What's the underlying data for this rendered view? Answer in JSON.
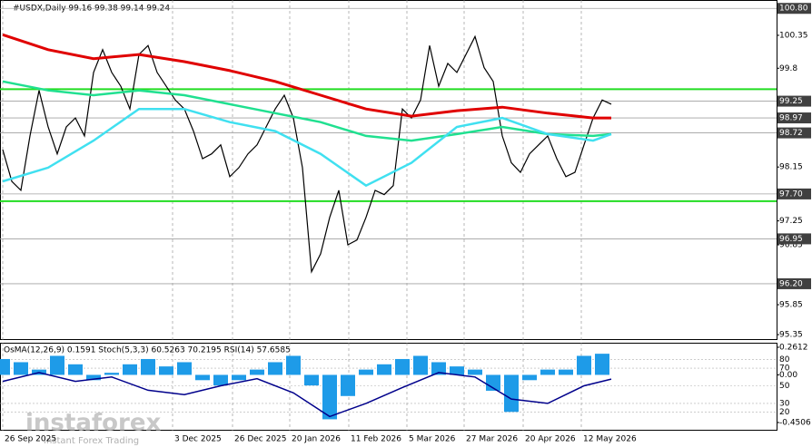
{
  "chart_data": [
    {
      "type": "line",
      "title": "#USDX,Daily  99.16 99.38 99.14 99.24",
      "xlim": [
        -0.3,
        85.2
      ],
      "ylim": [
        95.26,
        100.94
      ],
      "yticks": [
        100.35,
        99.8,
        98.15,
        97.25,
        96.85,
        95.85,
        95.35
      ],
      "xticks": [
        {
          "value": 0,
          "label": "26 Sep 2025"
        },
        {
          "value": 18.7,
          "label": "3 Dec 2025"
        },
        {
          "value": 25.3,
          "label": "26 Dec 2025"
        },
        {
          "value": 31.6,
          "label": "20 Jan 2026"
        },
        {
          "value": 38.1,
          "label": "11 Feb 2026"
        },
        {
          "value": 44.5,
          "label": "5 Mar 2026"
        },
        {
          "value": 50.8,
          "label": "27 Mar 2026"
        },
        {
          "value": 57.3,
          "label": "20 Apr 2026"
        },
        {
          "value": 63.7,
          "label": "12 May 2026"
        }
      ],
      "grid": true,
      "levels": [
        {
          "value": 100.8,
          "label": "100.80"
        },
        {
          "value": 99.25,
          "label": "99.25"
        },
        {
          "value": 98.97,
          "label": "98.97"
        },
        {
          "value": 98.72,
          "label": "98.72"
        },
        {
          "value": 97.7,
          "label": "97.70"
        },
        {
          "value": 96.95,
          "label": "96.95"
        },
        {
          "value": 96.2,
          "label": "96.20"
        }
      ],
      "support_lines": {
        "color": "#22dd22",
        "values": [
          99.45,
          97.58
        ]
      },
      "series": [
        {
          "color": "#000000",
          "width": 1.2,
          "x": [
            0,
            1,
            2,
            3,
            4,
            5,
            6,
            7,
            8,
            9,
            10,
            11,
            12,
            13,
            14,
            15,
            16,
            17,
            18,
            19,
            20,
            21,
            22,
            23,
            24,
            25,
            26,
            27,
            28,
            29,
            30,
            31,
            32,
            33,
            34,
            35,
            36,
            37,
            38,
            39,
            40,
            41,
            42,
            43,
            44,
            45,
            46,
            47,
            48,
            49,
            50,
            51,
            52,
            53,
            54,
            55,
            56,
            57,
            58,
            59,
            60,
            61,
            62,
            63,
            64,
            65,
            66,
            67
          ],
          "values": [
            98.44,
            97.91,
            97.76,
            98.67,
            99.43,
            98.82,
            98.37,
            98.82,
            98.97,
            98.67,
            99.73,
            100.11,
            99.73,
            99.5,
            99.12,
            100.03,
            100.18,
            99.73,
            99.5,
            99.27,
            99.12,
            98.75,
            98.29,
            98.37,
            98.52,
            97.99,
            98.14,
            98.37,
            98.52,
            98.82,
            99.12,
            99.35,
            98.97,
            98.14,
            96.4,
            96.7,
            97.31,
            97.76,
            96.85,
            96.93,
            97.31,
            97.76,
            97.69,
            97.84,
            99.12,
            98.97,
            99.27,
            100.18,
            99.5,
            99.88,
            99.73,
            100.03,
            100.33,
            99.81,
            99.58,
            98.67,
            98.22,
            98.06,
            98.37,
            98.52,
            98.67,
            98.29,
            97.99,
            98.06,
            98.52,
            98.97,
            99.27,
            99.2
          ]
        },
        {
          "color": "#e00000",
          "width": 3,
          "x": [
            0,
            5,
            10,
            15,
            20,
            25,
            30,
            35,
            40,
            45,
            50,
            55,
            60,
            65,
            67
          ],
          "values": [
            100.36,
            100.11,
            99.96,
            100.03,
            99.91,
            99.76,
            99.58,
            99.35,
            99.12,
            99.0,
            99.09,
            99.15,
            99.05,
            98.97,
            98.97
          ]
        },
        {
          "color": "#20e090",
          "width": 2.5,
          "x": [
            0,
            5,
            10,
            15,
            20,
            25,
            30,
            35,
            40,
            45,
            50,
            55,
            60,
            65,
            67
          ],
          "values": [
            99.58,
            99.43,
            99.35,
            99.43,
            99.35,
            99.2,
            99.05,
            98.9,
            98.67,
            98.59,
            98.7,
            98.82,
            98.7,
            98.67,
            98.7
          ]
        },
        {
          "color": "#40e0f0",
          "width": 2.5,
          "x": [
            0,
            5,
            10,
            15,
            20,
            25,
            30,
            35,
            40,
            45,
            50,
            55,
            60,
            65,
            67
          ],
          "values": [
            97.91,
            98.14,
            98.59,
            99.12,
            99.12,
            98.9,
            98.75,
            98.37,
            97.84,
            98.22,
            98.82,
            98.97,
            98.7,
            98.59,
            98.7
          ]
        }
      ]
    },
    {
      "type": "oscillator",
      "title": "OsMA(12,26,9) 0.1591  Stoch(5,3,3) 60.5263 70.2195  RSI(14) 57.6585",
      "xlim": [
        -0.3,
        85.2
      ],
      "ylim": [
        -0.4506,
        0.2612
      ],
      "y2lim": [
        0,
        100
      ],
      "yticks": [
        0.2612,
        {
          "value": 0,
          "label": "0.00"
        },
        -0.4506
      ],
      "y2ticks": [
        80,
        70,
        50,
        30,
        20
      ],
      "series": [
        {
          "type": "bar",
          "color": "#1e9be8",
          "x": [
            0,
            2,
            4,
            6,
            8,
            10,
            12,
            14,
            16,
            18,
            20,
            22,
            24,
            26,
            28,
            30,
            32,
            34,
            36,
            38,
            40,
            42,
            44,
            46,
            48,
            50,
            52,
            54,
            56,
            58,
            60,
            62,
            64,
            66
          ],
          "values": [
            0.15,
            0.12,
            0.05,
            0.18,
            0.1,
            -0.05,
            0.02,
            0.1,
            0.15,
            0.08,
            0.12,
            -0.05,
            -0.1,
            -0.05,
            0.05,
            0.12,
            0.18,
            -0.1,
            -0.42,
            -0.2,
            0.05,
            0.1,
            0.15,
            0.18,
            0.12,
            0.08,
            0.05,
            -0.15,
            -0.35,
            -0.05,
            0.05,
            0.05,
            0.18,
            0.2
          ]
        },
        {
          "type": "line",
          "axis": "y2",
          "color": "#00008b",
          "x": [
            0,
            4,
            8,
            12,
            16,
            20,
            24,
            28,
            32,
            36,
            40,
            44,
            48,
            52,
            56,
            60,
            64,
            67
          ],
          "values": [
            55,
            65,
            55,
            60,
            45,
            40,
            50,
            58,
            42,
            15,
            30,
            48,
            65,
            60,
            35,
            30,
            50,
            57.6585
          ]
        }
      ]
    }
  ],
  "watermark": {
    "brand": "instaforex",
    "tagline": "Instant Forex Trading"
  }
}
